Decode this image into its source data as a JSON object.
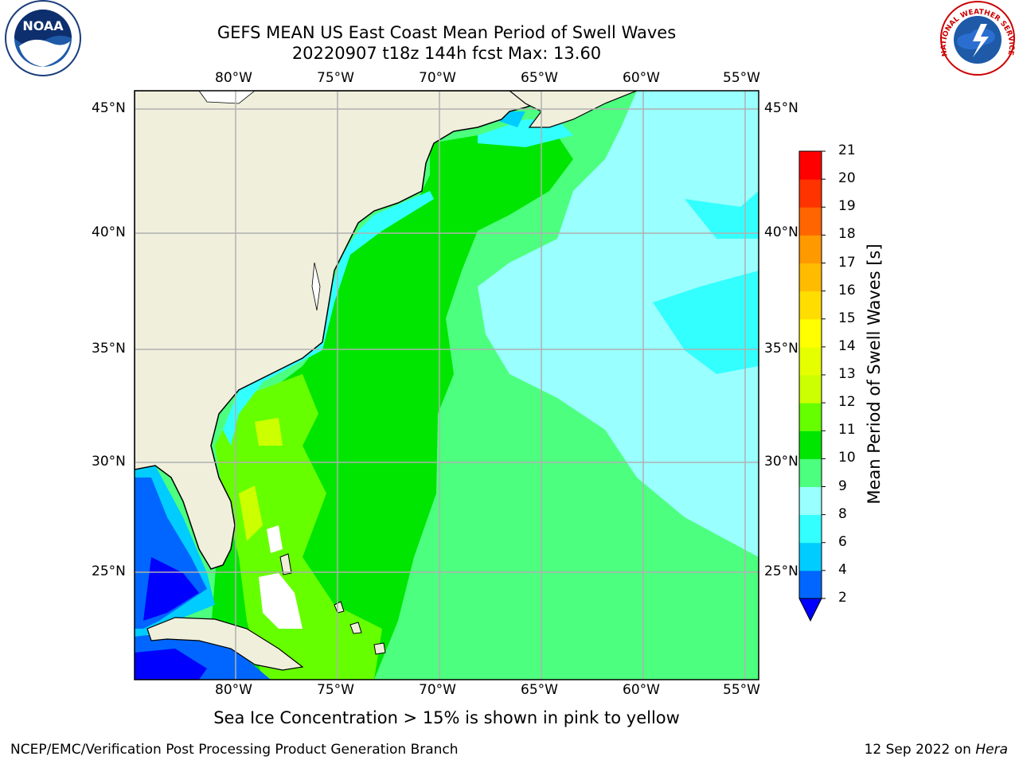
{
  "title_line1": "GEFS MEAN US East Coast Mean Period of Swell Waves",
  "title_line2": "20220907 t18z 144h fcst   Max: 13.60",
  "lon_ticks": [
    "80°W",
    "75°W",
    "70°W",
    "65°W",
    "60°W",
    "55°W"
  ],
  "lat_ticks": [
    "45°N",
    "40°N",
    "35°N",
    "30°N",
    "25°N"
  ],
  "colorbar": {
    "label": "Mean Period of Swell Waves [s]",
    "ticks": [
      "2",
      "4",
      "6",
      "8",
      "9",
      "10",
      "11",
      "12",
      "13",
      "14",
      "15",
      "16",
      "17",
      "18",
      "19",
      "20",
      "21"
    ],
    "colors": [
      "#0066ff",
      "#00ccff",
      "#33ffff",
      "#99ffff",
      "#4dff7f",
      "#00e600",
      "#66ff00",
      "#ccff00",
      "#e6ff00",
      "#ffff00",
      "#ffdd00",
      "#ffbb00",
      "#ff9900",
      "#ff6600",
      "#ff3300",
      "#ff0000"
    ],
    "under_color": "#0000ff"
  },
  "note": "Sea Ice Concentration > 15% is shown in pink to yellow",
  "footer_left": "NCEP/EMC/Verification Post Processing Product Generation Branch",
  "footer_right_prefix": "12 Sep 2022 on ",
  "footer_right_host": "Hera",
  "logos": {
    "noaa_text": "NOAA",
    "nws_text": "NATIONAL WEATHER SERVICE"
  },
  "colors": {
    "land": "#efefdc",
    "grid": "#b0b0b0"
  }
}
